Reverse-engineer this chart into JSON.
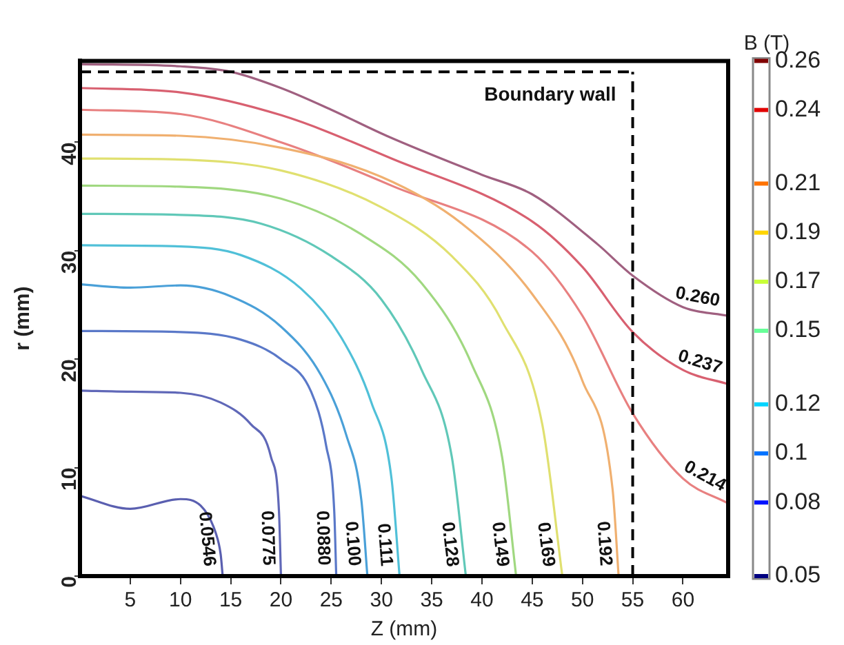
{
  "chart_data": {
    "type": "line",
    "xlabel": "Z (mm)",
    "ylabel": "r (mm)",
    "y2label": "B (T)",
    "xlim": [
      0,
      64.5
    ],
    "xticks": [
      5,
      10,
      15,
      20,
      25,
      30,
      35,
      40,
      45,
      50,
      55,
      60
    ],
    "ylim": [
      0,
      47.5
    ],
    "yticks": [
      0,
      10,
      20,
      30,
      40
    ],
    "y2lim": [
      0.05,
      0.26
    ],
    "y2ticks": [
      0.05,
      0.08,
      0.1,
      0.12,
      0.15,
      0.17,
      0.19,
      0.21,
      0.24,
      0.26
    ],
    "grid": false,
    "legend": false,
    "marker": "none",
    "ref_lines": [
      {
        "axis": "x",
        "value": 55,
        "label": "Boundary wall",
        "color": "#000000",
        "line_style": "dashed"
      },
      {
        "axis": "y",
        "value": 46.5,
        "color": "#000000",
        "line_style": "dashed"
      }
    ],
    "series": [
      {
        "name": "0.0546",
        "color": "#5a5fb0",
        "x": [
          0,
          5,
          10,
          12,
          13.5,
          14,
          14.2
        ],
        "values": [
          7.4,
          6.2,
          7.1,
          6.5,
          4,
          2,
          0
        ]
      },
      {
        "name": "0.0775",
        "color": "#6068b8",
        "x": [
          0,
          5,
          10,
          14,
          17,
          19,
          19.8,
          20
        ],
        "values": [
          17.1,
          17,
          16.9,
          16,
          14,
          11,
          6,
          0
        ]
      },
      {
        "name": "0.0880",
        "color": "#5a78c8",
        "x": [
          0,
          10,
          16,
          20,
          23,
          24.5,
          25.3,
          25.5
        ],
        "values": [
          22.6,
          22.5,
          21.8,
          20,
          17,
          12,
          6,
          0
        ]
      },
      {
        "name": "0.100",
        "color": "#4aa0d8",
        "x": [
          0,
          5,
          10,
          15,
          20,
          24,
          26.5,
          28,
          28.6
        ],
        "values": [
          26.9,
          26.6,
          26.8,
          25.8,
          23,
          18.5,
          13,
          7,
          0
        ]
      },
      {
        "name": "0.111",
        "color": "#50c0d8",
        "x": [
          0,
          10,
          16,
          22,
          26,
          29,
          31,
          31.8
        ],
        "values": [
          30.5,
          30.4,
          29.6,
          26.5,
          22,
          16,
          9,
          0
        ]
      },
      {
        "name": "0.128",
        "color": "#60c8b8",
        "x": [
          0,
          10,
          18,
          25,
          30,
          34,
          37,
          38.4
        ],
        "values": [
          33.4,
          33.3,
          32.5,
          29.5,
          25.5,
          19,
          11,
          0
        ]
      },
      {
        "name": "0.149",
        "color": "#a0d880",
        "x": [
          0,
          10,
          20,
          28,
          34,
          39,
          42,
          43.4
        ],
        "values": [
          36,
          35.9,
          34.8,
          31.5,
          27,
          19.5,
          11,
          0
        ]
      },
      {
        "name": "0.169",
        "color": "#e0e070",
        "x": [
          0,
          10,
          20,
          30,
          37,
          42,
          46,
          48
        ],
        "values": [
          38.5,
          38.4,
          37.4,
          34,
          29.5,
          23.5,
          14,
          0
        ]
      },
      {
        "name": "0.192",
        "color": "#f0b070",
        "x": [
          0,
          10,
          20,
          30,
          38,
          45,
          50,
          53,
          53.6
        ],
        "values": [
          40.7,
          40.6,
          39.5,
          36.8,
          32.5,
          26,
          18,
          8,
          0
        ]
      },
      {
        "name": "0.214",
        "color": "#e88080",
        "x": [
          0,
          10,
          20,
          31,
          45,
          50,
          55,
          60,
          64.5
        ],
        "values": [
          43,
          42.6,
          40,
          36,
          29.9,
          24,
          15,
          9,
          6.7
        ]
      },
      {
        "name": "0.237",
        "color": "#d86070",
        "x": [
          0,
          10,
          20,
          31,
          45,
          50,
          55,
          60,
          64.5
        ],
        "values": [
          45,
          44.6,
          42.5,
          38.5,
          32.7,
          28.5,
          22.5,
          19,
          17.7
        ]
      },
      {
        "name": "0.260",
        "color": "#a06080",
        "x": [
          0,
          10,
          15,
          20,
          25,
          30.5,
          40,
          45,
          51.5,
          55,
          60,
          64.5
        ],
        "values": [
          47.2,
          47,
          46.5,
          45,
          43,
          40.6,
          37,
          35.2,
          30.6,
          27.7,
          24.8,
          24
        ]
      }
    ]
  }
}
